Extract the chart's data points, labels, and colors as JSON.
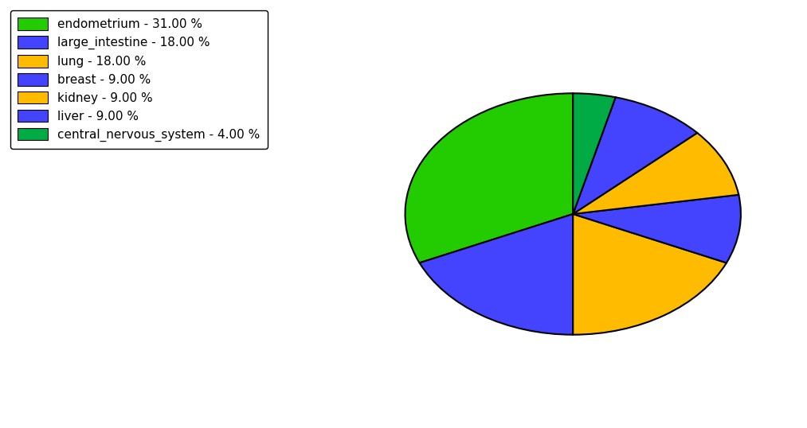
{
  "labels": [
    "endometrium",
    "large_intestine",
    "lung",
    "breast",
    "kidney",
    "liver",
    "central_nervous_system"
  ],
  "values": [
    31.0,
    18.0,
    18.0,
    9.0,
    9.0,
    9.0,
    4.0
  ],
  "colors": [
    "#22cc00",
    "#4444ff",
    "#ffbb00",
    "#4444ff",
    "#ffbb00",
    "#4444ff",
    "#00aa44"
  ],
  "legend_labels": [
    "endometrium - 31.00 %",
    "large_intestine - 18.00 %",
    "lung - 18.00 %",
    "breast - 9.00 %",
    "kidney - 9.00 %",
    "liver - 9.00 %",
    "central_nervous_system - 4.00 %"
  ],
  "legend_colors": [
    "#22cc00",
    "#4444ff",
    "#ffbb00",
    "#4444ff",
    "#ffbb00",
    "#4444ff",
    "#00aa44"
  ],
  "startangle": 90,
  "figsize": [
    10.13,
    5.38
  ],
  "dpi": 100,
  "edgecolor": "#000000",
  "linewidth": 1.5
}
